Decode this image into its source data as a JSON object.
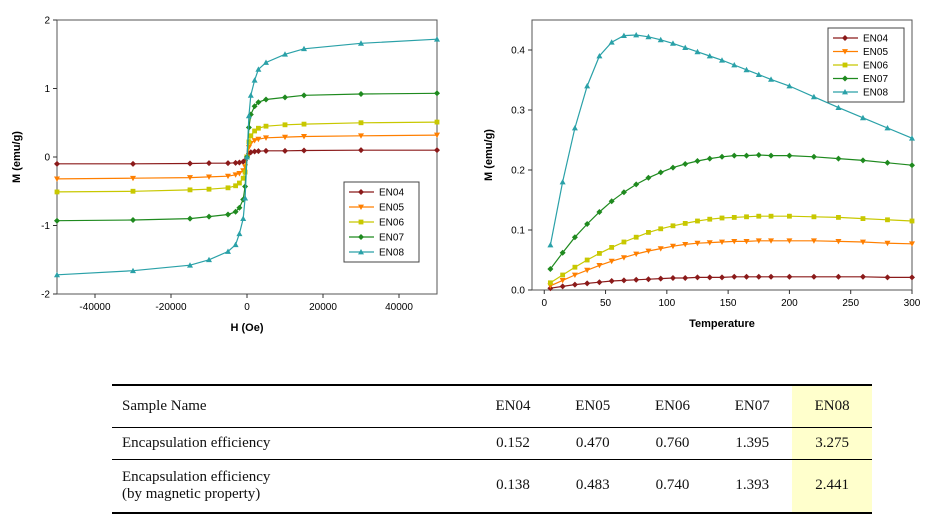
{
  "chart_data": [
    {
      "type": "line",
      "xlabel": "H (Oe)",
      "ylabel": "M (emu/g)",
      "xlim": [
        -50000,
        50000
      ],
      "ylim": [
        -2,
        2
      ],
      "xticks": [
        -40000,
        -20000,
        0,
        20000,
        40000
      ],
      "yticks": [
        -2,
        -1,
        0,
        1,
        2
      ],
      "grid": false,
      "legend": "center-right",
      "series": [
        {
          "name": "EN04",
          "color": "#8b1a1a",
          "marker": "diamond",
          "x": [
            -50000,
            -30000,
            -15000,
            -10000,
            -5000,
            -3000,
            -2000,
            -1000,
            -500,
            0,
            500,
            1000,
            2000,
            3000,
            5000,
            10000,
            15000,
            30000,
            50000
          ],
          "y": [
            -0.1,
            -0.1,
            -0.095,
            -0.09,
            -0.09,
            -0.085,
            -0.08,
            -0.07,
            -0.05,
            0,
            0.05,
            0.07,
            0.08,
            0.085,
            0.09,
            0.09,
            0.095,
            0.1,
            0.1
          ]
        },
        {
          "name": "EN05",
          "color": "#ff7f00",
          "marker": "triangle-down",
          "x": [
            -50000,
            -30000,
            -15000,
            -10000,
            -5000,
            -3000,
            -2000,
            -1000,
            -500,
            0,
            500,
            1000,
            2000,
            3000,
            5000,
            10000,
            15000,
            30000,
            50000
          ],
          "y": [
            -0.32,
            -0.31,
            -0.3,
            -0.29,
            -0.28,
            -0.26,
            -0.24,
            -0.2,
            -0.14,
            0,
            0.14,
            0.2,
            0.24,
            0.26,
            0.28,
            0.29,
            0.3,
            0.31,
            0.32
          ]
        },
        {
          "name": "EN06",
          "color": "#c8c800",
          "marker": "square",
          "x": [
            -50000,
            -30000,
            -15000,
            -10000,
            -5000,
            -3000,
            -2000,
            -1000,
            -500,
            0,
            500,
            1000,
            2000,
            3000,
            5000,
            10000,
            15000,
            30000,
            50000
          ],
          "y": [
            -0.51,
            -0.5,
            -0.48,
            -0.47,
            -0.45,
            -0.42,
            -0.38,
            -0.31,
            -0.22,
            0,
            0.22,
            0.31,
            0.38,
            0.42,
            0.45,
            0.47,
            0.48,
            0.5,
            0.51
          ]
        },
        {
          "name": "EN07",
          "color": "#1f8a1f",
          "marker": "diamond",
          "x": [
            -50000,
            -30000,
            -15000,
            -10000,
            -5000,
            -3000,
            -2000,
            -1000,
            -500,
            0,
            500,
            1000,
            2000,
            3000,
            5000,
            10000,
            15000,
            30000,
            50000
          ],
          "y": [
            -0.93,
            -0.92,
            -0.9,
            -0.87,
            -0.84,
            -0.8,
            -0.74,
            -0.62,
            -0.43,
            0,
            0.43,
            0.62,
            0.74,
            0.8,
            0.84,
            0.87,
            0.9,
            0.92,
            0.93
          ]
        },
        {
          "name": "EN08",
          "color": "#2aa1a8",
          "marker": "triangle",
          "x": [
            -50000,
            -30000,
            -15000,
            -10000,
            -5000,
            -3000,
            -2000,
            -1000,
            -500,
            0,
            500,
            1000,
            2000,
            3000,
            5000,
            10000,
            15000,
            30000,
            50000
          ],
          "y": [
            -1.72,
            -1.66,
            -1.58,
            -1.5,
            -1.38,
            -1.28,
            -1.12,
            -0.9,
            -0.6,
            0,
            0.6,
            0.9,
            1.12,
            1.28,
            1.38,
            1.5,
            1.58,
            1.66,
            1.72
          ]
        }
      ]
    },
    {
      "type": "line",
      "xlabel": "Temperature",
      "ylabel": "M (emu/g)",
      "xlim": [
        -10,
        300
      ],
      "ylim": [
        0,
        0.45
      ],
      "xticks": [
        0,
        50,
        100,
        150,
        200,
        250,
        300
      ],
      "yticks": [
        0.0,
        0.1,
        0.2,
        0.3,
        0.4
      ],
      "grid": false,
      "legend": "top-right",
      "series": [
        {
          "name": "EN04",
          "color": "#8b1a1a",
          "marker": "diamond",
          "x": [
            5,
            15,
            25,
            35,
            45,
            55,
            65,
            75,
            85,
            95,
            105,
            115,
            125,
            135,
            145,
            155,
            165,
            175,
            185,
            200,
            220,
            240,
            260,
            280,
            300
          ],
          "y": [
            0.003,
            0.006,
            0.009,
            0.011,
            0.013,
            0.015,
            0.016,
            0.017,
            0.018,
            0.019,
            0.02,
            0.02,
            0.021,
            0.021,
            0.021,
            0.022,
            0.022,
            0.022,
            0.022,
            0.022,
            0.022,
            0.022,
            0.022,
            0.021,
            0.021
          ]
        },
        {
          "name": "EN05",
          "color": "#ff7f00",
          "marker": "triangle-down",
          "x": [
            5,
            15,
            25,
            35,
            45,
            55,
            65,
            75,
            85,
            95,
            105,
            115,
            125,
            135,
            145,
            155,
            165,
            175,
            185,
            200,
            220,
            240,
            260,
            280,
            300
          ],
          "y": [
            0.007,
            0.016,
            0.025,
            0.033,
            0.041,
            0.048,
            0.054,
            0.06,
            0.065,
            0.069,
            0.073,
            0.076,
            0.078,
            0.079,
            0.08,
            0.081,
            0.081,
            0.082,
            0.082,
            0.082,
            0.082,
            0.081,
            0.08,
            0.078,
            0.077
          ]
        },
        {
          "name": "EN06",
          "color": "#c8c800",
          "marker": "square",
          "x": [
            5,
            15,
            25,
            35,
            45,
            55,
            65,
            75,
            85,
            95,
            105,
            115,
            125,
            135,
            145,
            155,
            165,
            175,
            185,
            200,
            220,
            240,
            260,
            280,
            300
          ],
          "y": [
            0.012,
            0.025,
            0.038,
            0.05,
            0.061,
            0.071,
            0.08,
            0.088,
            0.096,
            0.102,
            0.107,
            0.111,
            0.115,
            0.118,
            0.12,
            0.121,
            0.122,
            0.123,
            0.123,
            0.123,
            0.122,
            0.121,
            0.119,
            0.117,
            0.115
          ]
        },
        {
          "name": "EN07",
          "color": "#1f8a1f",
          "marker": "diamond",
          "x": [
            5,
            15,
            25,
            35,
            45,
            55,
            65,
            75,
            85,
            95,
            105,
            115,
            125,
            135,
            145,
            155,
            165,
            175,
            185,
            200,
            220,
            240,
            260,
            280,
            300
          ],
          "y": [
            0.035,
            0.062,
            0.088,
            0.11,
            0.13,
            0.148,
            0.163,
            0.176,
            0.187,
            0.196,
            0.204,
            0.21,
            0.215,
            0.219,
            0.222,
            0.224,
            0.224,
            0.225,
            0.224,
            0.224,
            0.222,
            0.219,
            0.216,
            0.212,
            0.208
          ]
        },
        {
          "name": "EN08",
          "color": "#2aa1a8",
          "marker": "triangle",
          "x": [
            5,
            15,
            25,
            35,
            45,
            55,
            65,
            75,
            85,
            95,
            105,
            115,
            125,
            135,
            145,
            155,
            165,
            175,
            185,
            200,
            220,
            240,
            260,
            280,
            300
          ],
          "y": [
            0.075,
            0.18,
            0.27,
            0.34,
            0.39,
            0.413,
            0.424,
            0.425,
            0.422,
            0.417,
            0.411,
            0.404,
            0.397,
            0.39,
            0.383,
            0.375,
            0.367,
            0.359,
            0.351,
            0.34,
            0.322,
            0.304,
            0.287,
            0.27,
            0.253
          ]
        }
      ]
    }
  ],
  "table": {
    "headers": [
      "Sample Name",
      "EN04",
      "EN05",
      "EN06",
      "EN07",
      "EN08"
    ],
    "rows": [
      {
        "label_line1": "Encapsulation efficiency",
        "label_line2": "",
        "values": [
          "0.152",
          "0.470",
          "0.760",
          "1.395",
          "3.275"
        ]
      },
      {
        "label_line1": "Encapsulation efficiency",
        "label_line2": "(by magnetic property)",
        "values": [
          "0.138",
          "0.483",
          "0.740",
          "1.393",
          "2.441"
        ]
      }
    ],
    "highlight_color": "#ffffcc"
  }
}
